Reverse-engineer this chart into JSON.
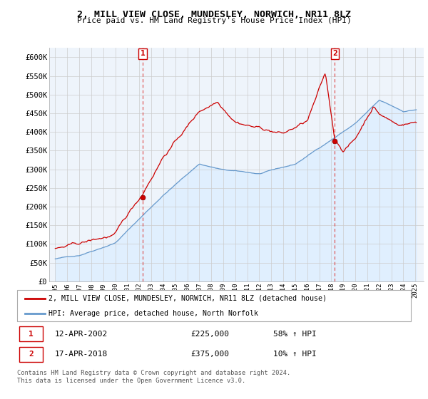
{
  "title": "2, MILL VIEW CLOSE, MUNDESLEY, NORWICH, NR11 8LZ",
  "subtitle": "Price paid vs. HM Land Registry's House Price Index (HPI)",
  "ylabel_ticks": [
    "£0",
    "£50K",
    "£100K",
    "£150K",
    "£200K",
    "£250K",
    "£300K",
    "£350K",
    "£400K",
    "£450K",
    "£500K",
    "£550K",
    "£600K"
  ],
  "ytick_values": [
    0,
    50000,
    100000,
    150000,
    200000,
    250000,
    300000,
    350000,
    400000,
    450000,
    500000,
    550000,
    600000
  ],
  "ylim": [
    0,
    625000
  ],
  "xlim_start": 1994.5,
  "xlim_end": 2025.7,
  "xticks": [
    1995,
    1996,
    1997,
    1998,
    1999,
    2000,
    2001,
    2002,
    2003,
    2004,
    2005,
    2006,
    2007,
    2008,
    2009,
    2010,
    2011,
    2012,
    2013,
    2014,
    2015,
    2016,
    2017,
    2018,
    2019,
    2020,
    2021,
    2022,
    2023,
    2024,
    2025
  ],
  "legend_line1": "2, MILL VIEW CLOSE, MUNDESLEY, NORWICH, NR11 8LZ (detached house)",
  "legend_line2": "HPI: Average price, detached house, North Norfolk",
  "line1_color": "#cc0000",
  "line2_color": "#6699cc",
  "fill_color": "#ddeeff",
  "sale1_year": 2002.28,
  "sale1_price": 225000,
  "sale2_year": 2018.29,
  "sale2_price": 375000,
  "annotation1_label": "1",
  "annotation2_label": "2",
  "footer": "Contains HM Land Registry data © Crown copyright and database right 2024.\nThis data is licensed under the Open Government Licence v3.0.",
  "bg_color": "#ffffff",
  "chart_bg_color": "#eef4fb",
  "grid_color": "#cccccc"
}
